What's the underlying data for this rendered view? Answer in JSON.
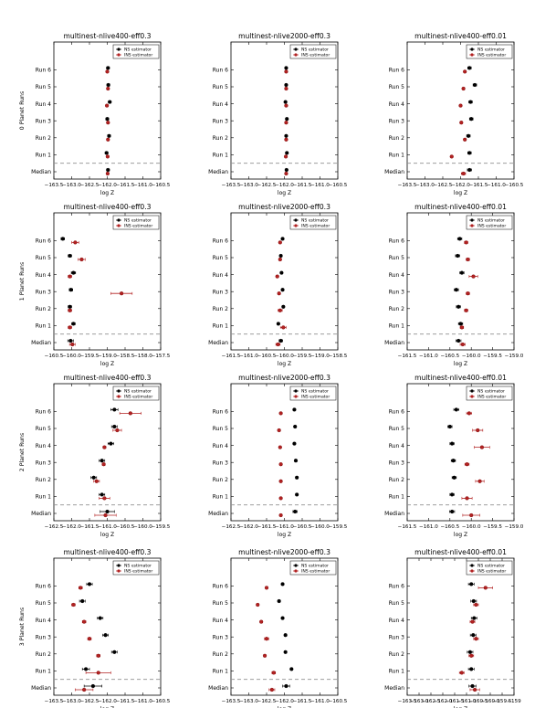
{
  "figure": {
    "ylabels": [
      "0 Planet Runs",
      "1 Planet Runs",
      "2 Planet Runs",
      "3 Planet Runs"
    ],
    "row_labels": [
      "Median",
      "Run 1",
      "Run 2",
      "Run 3",
      "Run 4",
      "Run 5",
      "Run 6"
    ],
    "xlabel": "log Z",
    "legend": [
      "NS estimator",
      "INS estimator"
    ],
    "colors": {
      "ns": "#000000",
      "ins": "#b22222",
      "dash": "#8f8f8f",
      "axis": "#000000"
    }
  },
  "chart_data": [
    {
      "type": "scatter",
      "title": "multinest-nlive400-eff0.3",
      "xlabel": "log Z",
      "ylabel": "0 Planet Runs",
      "xlim": [
        -163.5,
        -160.5
      ],
      "xticks": [
        -163.5,
        -163.0,
        -162.5,
        -162.0,
        -161.5,
        -161.0,
        -160.5
      ],
      "tick_labels": [
        "−163.5",
        "−163.0",
        "−162.5",
        "−162.0",
        "−161.5",
        "−161.0",
        "−160.5"
      ],
      "categories": [
        "Median",
        "Run 1",
        "Run 2",
        "Run 3",
        "Run 4",
        "Run 5",
        "Run 6"
      ],
      "series": [
        {
          "name": "NS estimator",
          "values": [
            -161.98,
            -162.02,
            -161.95,
            -162.0,
            -161.93,
            -161.97,
            -161.98
          ],
          "errors": [
            0.04,
            0.04,
            0.04,
            0.04,
            0.04,
            0.04,
            0.04
          ]
        },
        {
          "name": "INS estimator",
          "values": [
            -161.99,
            -161.99,
            -161.98,
            -161.98,
            -162.01,
            -161.98,
            -162.0
          ],
          "errors": [
            0.02,
            0.02,
            0.02,
            0.02,
            0.02,
            0.02,
            0.02
          ]
        }
      ]
    },
    {
      "type": "scatter",
      "title": "multinest-nlive2000-eff0.3",
      "xlabel": "log Z",
      "ylabel": "",
      "xlim": [
        -163.5,
        -160.5
      ],
      "xticks": [
        -163.5,
        -163.0,
        -162.5,
        -162.0,
        -161.5,
        -161.0,
        -160.5
      ],
      "tick_labels": [
        "−163.5",
        "−163.0",
        "−162.5",
        "−162.0",
        "−161.5",
        "−161.0",
        "−160.5"
      ],
      "categories": [
        "Median",
        "Run 1",
        "Run 2",
        "Run 3",
        "Run 4",
        "Run 5",
        "Run 6"
      ],
      "series": [
        {
          "name": "NS estimator",
          "values": [
            -161.94,
            -161.93,
            -161.95,
            -161.93,
            -161.97,
            -161.95,
            -161.95
          ],
          "errors": [
            0.02,
            0.02,
            0.02,
            0.02,
            0.02,
            0.02,
            0.02
          ]
        },
        {
          "name": "INS estimator",
          "values": [
            -161.95,
            -161.96,
            -161.95,
            -161.95,
            -161.95,
            -161.95,
            -161.95
          ],
          "errors": [
            0.01,
            0.01,
            0.01,
            0.01,
            0.01,
            0.01,
            0.01
          ]
        }
      ]
    },
    {
      "type": "scatter",
      "title": "multinest-nlive400-eff0.01",
      "xlabel": "log Z",
      "ylabel": "",
      "xlim": [
        -163.5,
        -160.5
      ],
      "xticks": [
        -163.5,
        -163.0,
        -162.5,
        -162.0,
        -161.5,
        -161.0,
        -160.5
      ],
      "tick_labels": [
        "−163.5",
        "−163.0",
        "−162.5",
        "−162.0",
        "−161.5",
        "−161.0",
        "−160.5"
      ],
      "categories": [
        "Median",
        "Run 1",
        "Run 2",
        "Run 3",
        "Run 4",
        "Run 5",
        "Run 6"
      ],
      "series": [
        {
          "name": "NS estimator",
          "values": [
            -161.75,
            -161.75,
            -161.78,
            -161.7,
            -161.72,
            -161.6,
            -161.75
          ],
          "errors": [
            0.06,
            0.05,
            0.05,
            0.05,
            0.05,
            0.05,
            0.05
          ]
        },
        {
          "name": "INS estimator",
          "values": [
            -161.92,
            -162.25,
            -161.88,
            -161.98,
            -162.0,
            -161.92,
            -161.88
          ],
          "errors": [
            0.06,
            0.02,
            0.02,
            0.02,
            0.02,
            0.02,
            0.02
          ]
        }
      ]
    },
    {
      "type": "scatter",
      "title": "multinest-nlive400-eff0.3",
      "xlabel": "log Z",
      "ylabel": "1 Planet Runs",
      "xlim": [
        -160.5,
        -157.5
      ],
      "xticks": [
        -160.5,
        -160.0,
        -159.5,
        -159.0,
        -158.5,
        -158.0,
        -157.5
      ],
      "tick_labels": [
        "−160.5",
        "−160.0",
        "−159.5",
        "−159.0",
        "−158.5",
        "−158.0",
        "−157.5"
      ],
      "categories": [
        "Median",
        "Run 1",
        "Run 2",
        "Run 3",
        "Run 4",
        "Run 5",
        "Run 6"
      ],
      "series": [
        {
          "name": "NS estimator",
          "values": [
            -160.03,
            -159.95,
            -160.05,
            -160.02,
            -159.95,
            -160.05,
            -160.25
          ],
          "errors": [
            0.08,
            0.05,
            0.05,
            0.05,
            0.06,
            0.05,
            0.05
          ]
        },
        {
          "name": "INS estimator",
          "values": [
            -159.98,
            -160.05,
            -160.05,
            -158.6,
            -160.05,
            -159.72,
            -159.9
          ],
          "errors": [
            0.08,
            0.05,
            0.05,
            0.3,
            0.05,
            0.1,
            0.1
          ]
        }
      ]
    },
    {
      "type": "scatter",
      "title": "multinest-nlive2000-eff0.3",
      "xlabel": "log Z",
      "ylabel": "",
      "xlim": [
        -161.5,
        -158.5
      ],
      "xticks": [
        -161.5,
        -161.0,
        -160.5,
        -160.0,
        -159.5,
        -159.0,
        -158.5
      ],
      "tick_labels": [
        "−161.5",
        "−161.0",
        "−160.5",
        "−160.0",
        "−159.5",
        "−159.0",
        "−158.5"
      ],
      "categories": [
        "Median",
        "Run 1",
        "Run 2",
        "Run 3",
        "Run 4",
        "Run 5",
        "Run 6"
      ],
      "series": [
        {
          "name": "NS estimator",
          "values": [
            -160.1,
            -160.17,
            -160.03,
            -160.05,
            -160.08,
            -160.1,
            -160.05
          ],
          "errors": [
            0.05,
            0.03,
            0.03,
            0.03,
            0.03,
            0.03,
            0.03
          ]
        },
        {
          "name": "INS estimator",
          "values": [
            -160.18,
            -160.03,
            -160.12,
            -160.15,
            -160.2,
            -160.12,
            -160.12
          ],
          "errors": [
            0.06,
            0.08,
            0.06,
            0.03,
            0.03,
            0.03,
            0.03
          ]
        }
      ]
    },
    {
      "type": "scatter",
      "title": "multinest-nlive400-eff0.01",
      "xlabel": "log Z",
      "ylabel": "",
      "xlim": [
        -161.5,
        -159.0
      ],
      "xticks": [
        -161.5,
        -161.0,
        -160.5,
        -160.0,
        -159.5,
        -159.0
      ],
      "tick_labels": [
        "−161.5",
        "−161.0",
        "−160.5",
        "−160.0",
        "−159.5",
        "−159.0"
      ],
      "categories": [
        "Median",
        "Run 1",
        "Run 2",
        "Run 3",
        "Run 4",
        "Run 5",
        "Run 6"
      ],
      "series": [
        {
          "name": "NS estimator",
          "values": [
            -160.3,
            -160.25,
            -160.3,
            -160.35,
            -160.22,
            -160.32,
            -160.27
          ],
          "errors": [
            0.06,
            0.05,
            0.05,
            0.05,
            0.05,
            0.05,
            0.05
          ]
        },
        {
          "name": "INS estimator",
          "values": [
            -160.2,
            -160.22,
            -160.12,
            -160.08,
            -159.95,
            -160.08,
            -160.12
          ],
          "errors": [
            0.06,
            0.04,
            0.04,
            0.04,
            0.1,
            0.04,
            0.04
          ]
        }
      ]
    },
    {
      "type": "scatter",
      "title": "multinest-nlive400-eff0.3",
      "xlabel": "log Z",
      "ylabel": "2 Planet Runs",
      "xlim": [
        -162.5,
        -159.5
      ],
      "xticks": [
        -162.5,
        -162.0,
        -161.5,
        -161.0,
        -160.5,
        -160.0,
        -159.5
      ],
      "tick_labels": [
        "−162.5",
        "−162.0",
        "−161.5",
        "−161.0",
        "−160.5",
        "−160.0",
        "−159.5"
      ],
      "categories": [
        "Median",
        "Run 1",
        "Run 2",
        "Run 3",
        "Run 4",
        "Run 5",
        "Run 6"
      ],
      "series": [
        {
          "name": "NS estimator",
          "values": [
            -161.0,
            -161.15,
            -161.38,
            -161.15,
            -160.9,
            -160.8,
            -160.8
          ],
          "errors": [
            0.2,
            0.08,
            0.08,
            0.08,
            0.08,
            0.08,
            0.1
          ]
        },
        {
          "name": "INS estimator",
          "values": [
            -161.05,
            -161.08,
            -161.3,
            -161.1,
            -161.08,
            -160.72,
            -160.35
          ],
          "errors": [
            0.3,
            0.15,
            0.08,
            0.04,
            0.04,
            0.12,
            0.3
          ]
        }
      ]
    },
    {
      "type": "scatter",
      "title": "multinest-nlive2000-eff0.3",
      "xlabel": "log Z",
      "ylabel": "",
      "xlim": [
        -162.5,
        -159.5
      ],
      "xticks": [
        -162.5,
        -162.0,
        -161.5,
        -161.0,
        -160.5,
        -160.0,
        -159.5
      ],
      "tick_labels": [
        "−162.5",
        "−162.0",
        "−161.5",
        "−161.0",
        "−160.5",
        "−160.0",
        "−159.5"
      ],
      "categories": [
        "Median",
        "Run 1",
        "Run 2",
        "Run 3",
        "Run 4",
        "Run 5",
        "Run 6"
      ],
      "series": [
        {
          "name": "NS estimator",
          "values": [
            -160.7,
            -160.65,
            -160.65,
            -160.68,
            -160.72,
            -160.7,
            -160.72
          ],
          "errors": [
            0.06,
            0.03,
            0.03,
            0.03,
            0.03,
            0.03,
            0.03
          ]
        },
        {
          "name": "INS estimator",
          "values": [
            -161.1,
            -161.1,
            -161.1,
            -161.1,
            -161.12,
            -161.15,
            -161.1
          ],
          "errors": [
            0.02,
            0.02,
            0.02,
            0.02,
            0.02,
            0.02,
            0.02
          ]
        }
      ]
    },
    {
      "type": "scatter",
      "title": "multinest-nlive400-eff0.01",
      "xlabel": "log Z",
      "ylabel": "",
      "xlim": [
        -161.5,
        -159.0
      ],
      "xticks": [
        -161.5,
        -161.0,
        -160.5,
        -160.0,
        -159.5,
        -159.0
      ],
      "tick_labels": [
        "−161.5",
        "−161.0",
        "−160.5",
        "−160.0",
        "−159.5",
        "−159.0"
      ],
      "categories": [
        "Median",
        "Run 1",
        "Run 2",
        "Run 3",
        "Run 4",
        "Run 5",
        "Run 6"
      ],
      "series": [
        {
          "name": "NS estimator",
          "values": [
            -160.45,
            -160.45,
            -160.4,
            -160.42,
            -160.45,
            -160.5,
            -160.35
          ],
          "errors": [
            0.06,
            0.05,
            0.05,
            0.05,
            0.05,
            0.05,
            0.06
          ]
        },
        {
          "name": "INS estimator",
          "values": [
            -160.0,
            -160.1,
            -159.8,
            -160.1,
            -159.75,
            -159.85,
            -160.05
          ],
          "errors": [
            0.2,
            0.12,
            0.1,
            0.05,
            0.18,
            0.12,
            0.06
          ]
        }
      ]
    },
    {
      "type": "scatter",
      "title": "multinest-nlive400-eff0.3",
      "xlabel": "log Z",
      "ylabel": "3 Planet Runs",
      "xlim": [
        -163.5,
        -160.5
      ],
      "xticks": [
        -163.5,
        -163.0,
        -162.5,
        -162.0,
        -161.5,
        -161.0,
        -160.5
      ],
      "tick_labels": [
        "−163.5",
        "−163.0",
        "−162.5",
        "−162.0",
        "−161.5",
        "−161.0",
        "−160.5"
      ],
      "categories": [
        "Median",
        "Run 1",
        "Run 2",
        "Run 3",
        "Run 4",
        "Run 5",
        "Run 6"
      ],
      "series": [
        {
          "name": "NS estimator",
          "values": [
            -162.4,
            -162.6,
            -161.8,
            -162.05,
            -162.2,
            -162.7,
            -162.5
          ],
          "errors": [
            0.25,
            0.1,
            0.08,
            0.08,
            0.08,
            0.08,
            0.08
          ]
        },
        {
          "name": "INS estimator",
          "values": [
            -162.65,
            -162.25,
            -162.25,
            -162.5,
            -162.65,
            -162.95,
            -162.75
          ],
          "errors": [
            0.25,
            0.35,
            0.05,
            0.05,
            0.05,
            0.05,
            0.05
          ]
        }
      ]
    },
    {
      "type": "scatter",
      "title": "multinest-nlive2000-eff0.3",
      "xlabel": "log Z",
      "ylabel": "",
      "xlim": [
        -163.5,
        -160.5
      ],
      "xticks": [
        -163.5,
        -163.0,
        -162.5,
        -162.0,
        -161.5,
        -161.0,
        -160.5
      ],
      "tick_labels": [
        "−163.5",
        "−163.0",
        "−162.5",
        "−162.0",
        "−161.5",
        "−161.0",
        "−160.5"
      ],
      "categories": [
        "Median",
        "Run 1",
        "Run 2",
        "Run 3",
        "Run 4",
        "Run 5",
        "Run 6"
      ],
      "series": [
        {
          "name": "NS estimator",
          "values": [
            -161.95,
            -161.8,
            -161.97,
            -161.97,
            -162.05,
            -162.15,
            -162.05
          ],
          "errors": [
            0.1,
            0.03,
            0.03,
            0.03,
            0.03,
            0.03,
            0.03
          ]
        },
        {
          "name": "INS estimator",
          "values": [
            -162.35,
            -162.3,
            -162.55,
            -162.5,
            -162.65,
            -162.75,
            -162.5
          ],
          "errors": [
            0.08,
            0.05,
            0.03,
            0.06,
            0.03,
            0.03,
            0.03
          ]
        }
      ]
    },
    {
      "type": "scatter",
      "title": "multinest-nlive400-eff0.01",
      "xlabel": "log Z",
      "ylabel": "",
      "xlim": [
        -163.5,
        -159.0
      ],
      "xticks": [
        -163.5,
        -163.0,
        -162.5,
        -162.0,
        -161.5,
        -161.0,
        -160.5,
        -160.0,
        -159.5,
        -159.0
      ],
      "tick_labels": [
        "−163.5",
        "−163.0",
        "−162.5",
        "−162.0",
        "−161.5",
        "−161.0",
        "−160.5",
        "−160.0",
        "−159.5",
        "−159"
      ],
      "categories": [
        "Median",
        "Run 1",
        "Run 2",
        "Run 3",
        "Run 4",
        "Run 5",
        "Run 6"
      ],
      "series": [
        {
          "name": "NS estimator",
          "values": [
            -160.75,
            -160.8,
            -160.85,
            -160.72,
            -160.68,
            -160.7,
            -160.8
          ],
          "errors": [
            0.15,
            0.12,
            0.12,
            0.12,
            0.12,
            0.12,
            0.12
          ]
        },
        {
          "name": "INS estimator",
          "values": [
            -160.65,
            -161.2,
            -160.8,
            -160.6,
            -160.75,
            -160.6,
            -160.2
          ],
          "errors": [
            0.2,
            0.1,
            0.1,
            0.1,
            0.1,
            0.1,
            0.3
          ]
        }
      ]
    }
  ]
}
